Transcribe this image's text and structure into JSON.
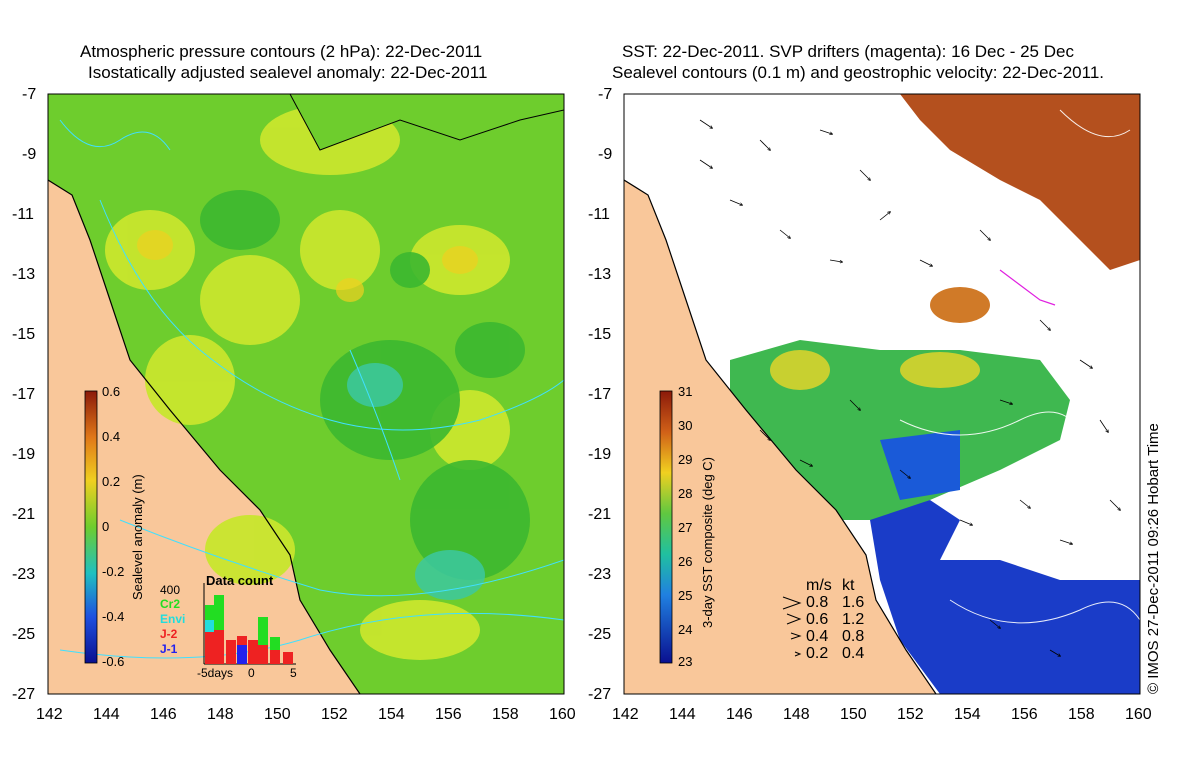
{
  "left_panel": {
    "title_line1": "Atmospheric pressure contours (2 hPa): 22-Dec-2011",
    "title_line2": "Isostatically adjusted sealevel anomaly: 22-Dec-2011",
    "colorbar": {
      "label": "Sealevel anomaly (m)",
      "ticks": [
        "0.6",
        "0.4",
        "0.2",
        "0",
        "-0.2",
        "-0.4",
        "-0.6"
      ],
      "range": [
        -0.6,
        0.6
      ]
    },
    "data_count": {
      "title": "Data count",
      "y_max_label": "400",
      "x_labels": [
        "-5days",
        "0",
        "5"
      ],
      "legend": [
        {
          "label": "Cr2",
          "color": "#22dd22"
        },
        {
          "label": "Envi",
          "color": "#22dddd"
        },
        {
          "label": "J-2",
          "color": "#ee2222"
        },
        {
          "label": "J-1",
          "color": "#2222ee"
        }
      ]
    }
  },
  "right_panel": {
    "title_line1": "SST: 22-Dec-2011. SVP drifters (magenta): 16 Dec - 25 Dec",
    "title_line2": "Sealevel contours (0.1 m) and geostrophic velocity: 22-Dec-2011.",
    "colorbar": {
      "label": "3-day SST composite (deg C)",
      "ticks": [
        "31",
        "30",
        "29",
        "28",
        "27",
        "26",
        "25",
        "24",
        "23"
      ],
      "range": [
        23,
        31
      ]
    },
    "velocity_legend": {
      "header_ms": "m/s",
      "header_kt": "kt",
      "rows": [
        {
          "ms": "0.8",
          "kt": "1.6"
        },
        {
          "ms": "0.6",
          "kt": "1.2"
        },
        {
          "ms": "0.4",
          "kt": "0.8"
        },
        {
          "ms": "0.2",
          "kt": "0.4"
        }
      ]
    }
  },
  "axes": {
    "y_ticks": [
      "-7",
      "-9",
      "-11",
      "-13",
      "-15",
      "-17",
      "-19",
      "-21",
      "-23",
      "-25",
      "-27"
    ],
    "x_ticks": [
      "142",
      "144",
      "146",
      "148",
      "150",
      "152",
      "154",
      "156",
      "158",
      "160"
    ]
  },
  "credit": "© IMOS 27-Dec-2011 09:26 Hobart Time",
  "colors": {
    "land": "#f9c79a",
    "sla_green": "#55c837",
    "sla_yellow": "#c8e62d",
    "sla_cyan": "#3cc8a0",
    "sst_white": "#ffffff",
    "sst_brown": "#b4501e",
    "sst_blue": "#1a3cc8"
  }
}
